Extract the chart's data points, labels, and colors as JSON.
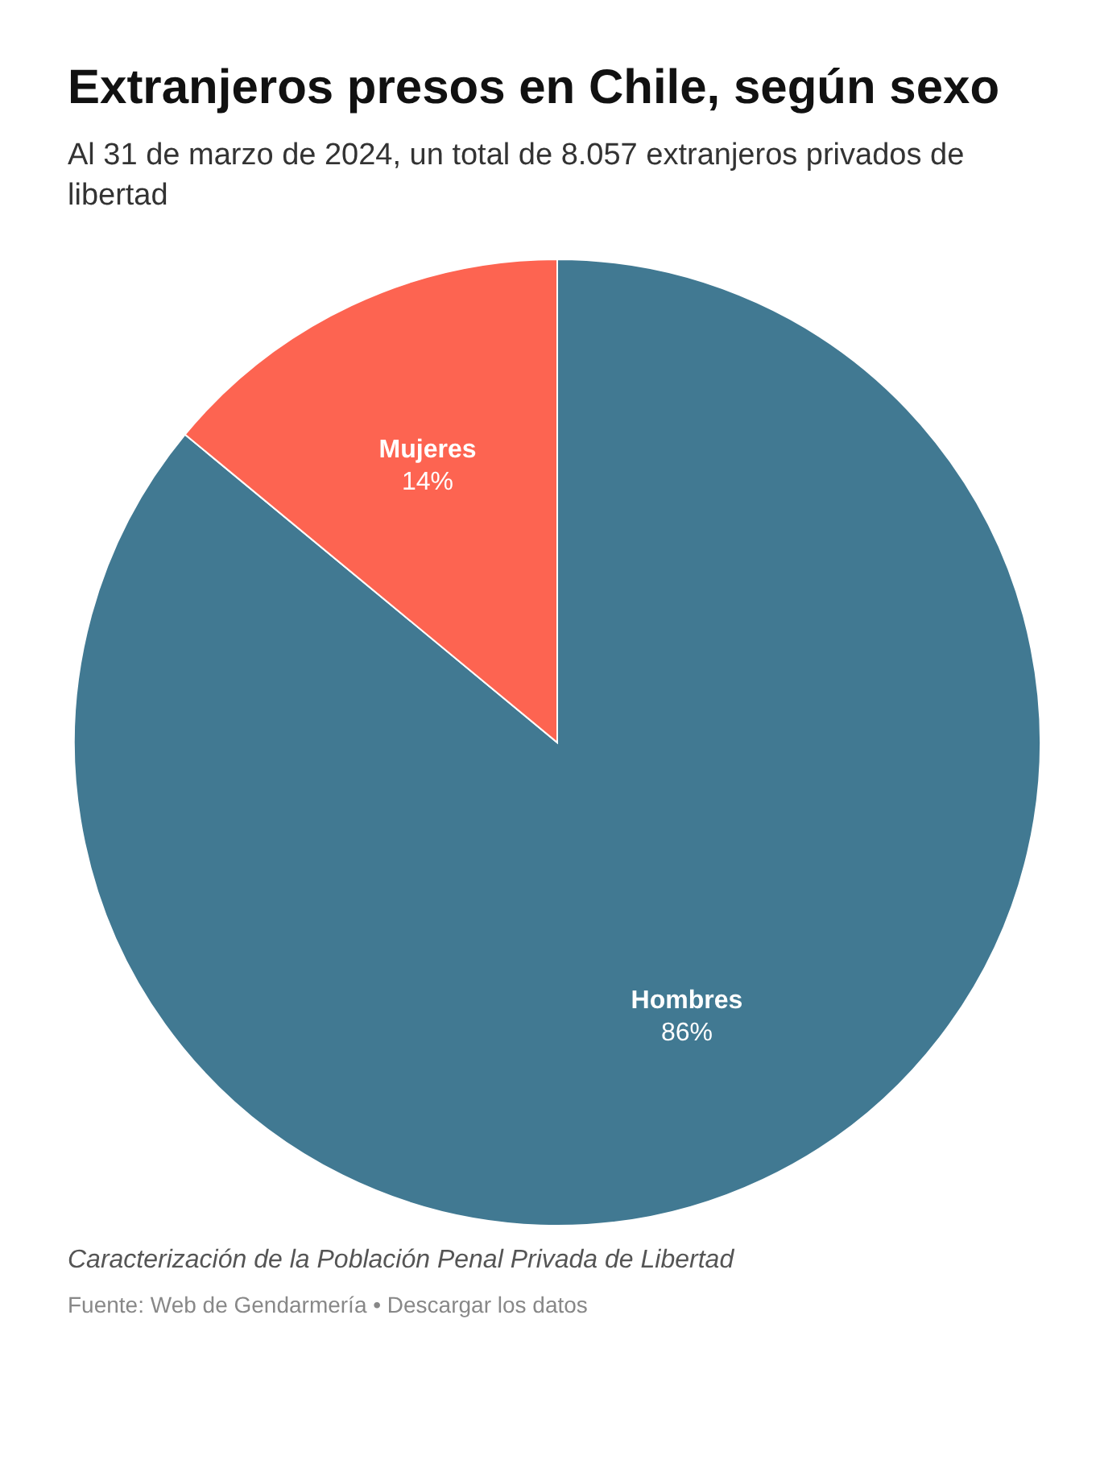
{
  "chart_data": {
    "type": "pie",
    "title": "Extranjeros presos en Chile, según sexo",
    "subtitle": "Al 31 de marzo de 2024, un total de 8.057 extranjeros privados de libertad",
    "categories": [
      "Hombres",
      "Mujeres"
    ],
    "values": [
      86,
      14
    ],
    "colors": [
      "#417992",
      "#fd6451"
    ],
    "value_labels": [
      "86%",
      "14%"
    ],
    "annotations": [
      "Caracterización de la Población Penal Privada de Libertad",
      "Fuente: Web de Gendarmería • Descargar los datos"
    ]
  }
}
